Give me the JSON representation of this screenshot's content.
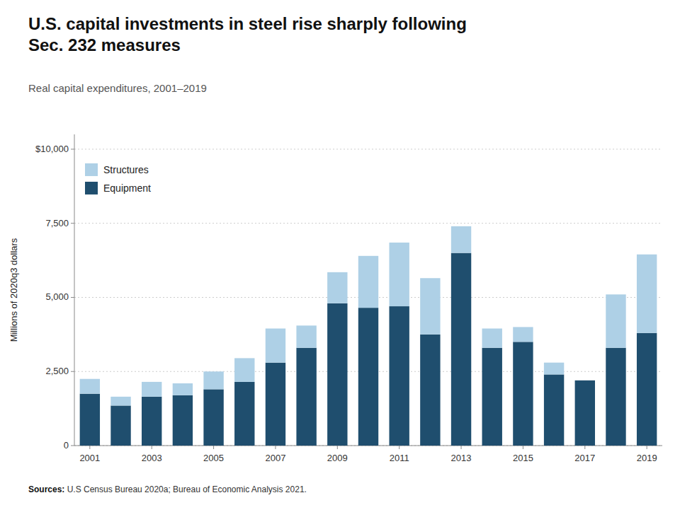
{
  "chart_data": {
    "type": "bar",
    "title": "U.S. capital investments in steel rise sharply following\nSec. 232 measures",
    "subtitle": "Real capital expenditures, 2001–2019",
    "y_label": "Millions of 2020q3 dollars",
    "source": "Sources: U.S Census Bureau 2020a; Bureau of Economic Analysis 2021.",
    "categories": [
      "2001",
      null,
      "2003",
      null,
      "2005",
      null,
      "2007",
      null,
      "2009",
      null,
      "2011",
      null,
      "2013",
      null,
      "2015",
      null,
      "2017",
      null,
      "2019"
    ],
    "series": [
      {
        "name": "Equipment",
        "color": "#1f4e6e",
        "values": [
          1750,
          1350,
          1650,
          1700,
          1900,
          2150,
          2800,
          3300,
          4800,
          4650,
          4700,
          3750,
          6500,
          3300,
          3500,
          2400,
          2200,
          3300,
          3800
        ]
      },
      {
        "name": "Structures",
        "color": "#aed0e6",
        "values": [
          500,
          300,
          500,
          400,
          600,
          800,
          1150,
          750,
          1050,
          1750,
          2150,
          1900,
          900,
          650,
          500,
          400,
          0,
          1800,
          2650
        ]
      }
    ],
    "stacked": true,
    "ylim": [
      0,
      10500
    ],
    "yticks": [
      0,
      {
        "value": 2500,
        "label": "2,500"
      },
      {
        "value": 5000,
        "label": "5,000"
      },
      {
        "value": 7500,
        "label": "7,500"
      },
      {
        "value": 10000,
        "label": "$10,000"
      }
    ],
    "grid": true,
    "legend": "upper-left"
  }
}
